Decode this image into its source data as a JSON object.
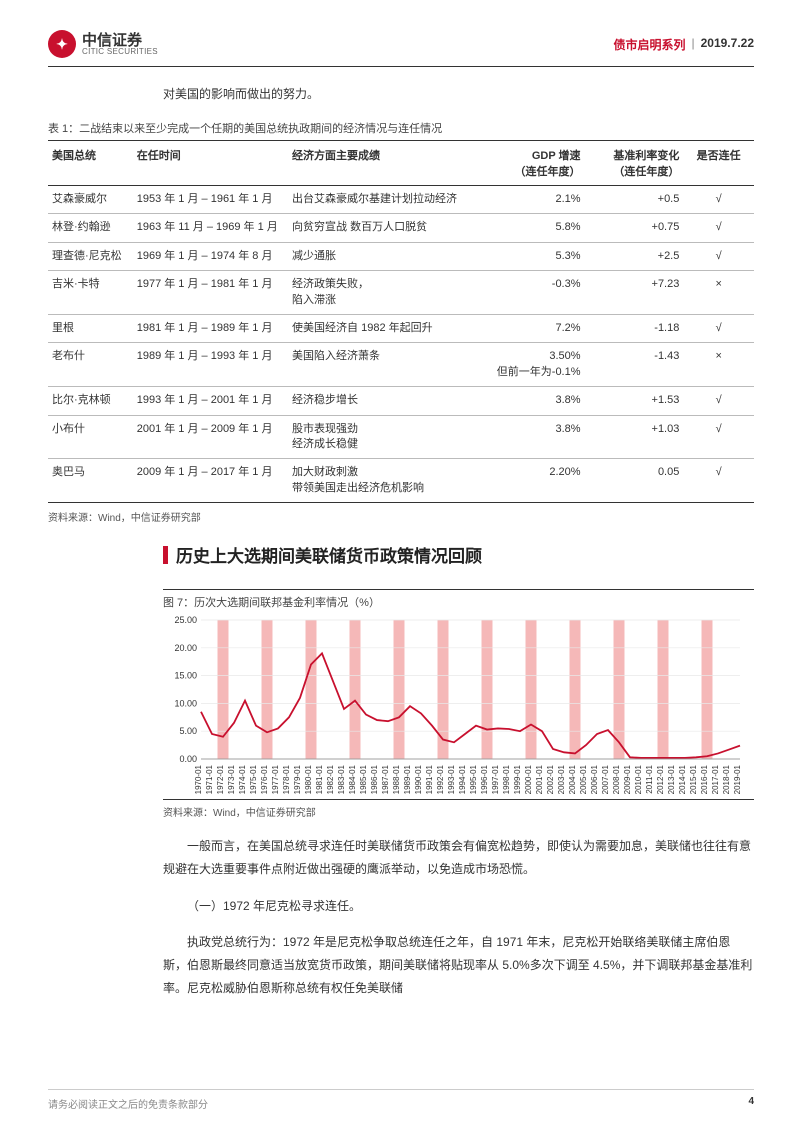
{
  "header": {
    "logo_cn": "中信证券",
    "logo_en": "CITIC SECURITIES",
    "series_label": "债市启明系列",
    "date": "2019.7.22"
  },
  "intro": "对美国的影响而做出的努力。",
  "table1": {
    "caption": "表 1：二战结束以来至少完成一个任期的美国总统执政期间的经济情况与连任情况",
    "columns": [
      "美国总统",
      "在任时间",
      "经济方面主要成绩",
      "GDP 增速\n（连任年度）",
      "基准利率变化\n（连任年度）",
      "是否连任"
    ],
    "rows": [
      [
        "艾森豪威尔",
        "1953 年 1 月 – 1961 年 1 月",
        "出台艾森豪威尔基建计划拉动经济",
        "2.1%",
        "+0.5",
        "√"
      ],
      [
        "林登·约翰逊",
        "1963 年 11 月 – 1969 年 1 月",
        "向贫穷宣战  数百万人口脱贫",
        "5.8%",
        "+0.75",
        "√"
      ],
      [
        "理查德·尼克松",
        "1969 年 1 月 – 1974 年 8 月",
        "减少通胀",
        "5.3%",
        "+2.5",
        "√"
      ],
      [
        "吉米·卡特",
        "1977 年 1 月 – 1981 年 1 月",
        "经济政策失败，\n陷入滞涨",
        "-0.3%",
        "+7.23",
        "×"
      ],
      [
        "里根",
        "1981 年 1 月 – 1989 年 1 月",
        "使美国经济自 1982 年起回升",
        "7.2%",
        "-1.18",
        "√"
      ],
      [
        "老布什",
        "1989 年 1 月 – 1993 年 1 月",
        "美国陷入经济萧条",
        "3.50%\n但前一年为-0.1%",
        "-1.43",
        "×"
      ],
      [
        "比尔·克林顿",
        "1993 年 1 月 – 2001 年 1 月",
        "经济稳步增长",
        "3.8%",
        "+1.53",
        "√"
      ],
      [
        "小布什",
        "2001 年 1 月 – 2009 年 1 月",
        "股市表现强劲\n经济成长稳健",
        "3.8%",
        "+1.03",
        "√"
      ],
      [
        "奥巴马",
        "2009 年 1 月 – 2017 年 1 月",
        "加大财政刺激\n带领美国走出经济危机影响",
        "2.20%",
        "0.05",
        "√"
      ]
    ],
    "source": "资料来源：Wind，中信证券研究部"
  },
  "section_title": "历史上大选期间美联储货币政策情况回顾",
  "chart7": {
    "caption": "图 7：历次大选期间联邦基金利率情况（%）",
    "type": "line",
    "y_ticks": [
      0.0,
      5.0,
      10.0,
      15.0,
      20.0,
      25.0
    ],
    "ylim": [
      0,
      25
    ],
    "x_labels": [
      "1970-01",
      "1971-01",
      "1972-01",
      "1973-01",
      "1974-01",
      "1975-01",
      "1976-01",
      "1977-01",
      "1978-01",
      "1979-01",
      "1980-01",
      "1981-01",
      "1982-01",
      "1983-01",
      "1984-01",
      "1985-01",
      "1986-01",
      "1987-01",
      "1988-01",
      "1989-01",
      "1990-01",
      "1991-01",
      "1992-01",
      "1993-01",
      "1994-01",
      "1995-01",
      "1996-01",
      "1997-01",
      "1998-01",
      "1999-01",
      "2000-01",
      "2001-01",
      "2002-01",
      "2003-01",
      "2004-01",
      "2005-01",
      "2006-01",
      "2007-01",
      "2008-01",
      "2009-01",
      "2010-01",
      "2011-01",
      "2012-01",
      "2013-01",
      "2014-01",
      "2015-01",
      "2016-01",
      "2017-01",
      "2018-01",
      "2019-01"
    ],
    "series_values": [
      8.5,
      4.5,
      4.0,
      6.5,
      10.5,
      6.0,
      4.8,
      5.5,
      7.5,
      11.0,
      17.0,
      19.0,
      14.0,
      9.0,
      10.5,
      8.0,
      7.0,
      6.8,
      7.5,
      9.5,
      8.2,
      6.0,
      3.5,
      3.0,
      4.5,
      6.0,
      5.3,
      5.5,
      5.4,
      5.0,
      6.2,
      5.0,
      1.8,
      1.2,
      1.0,
      2.5,
      4.5,
      5.2,
      3.0,
      0.3,
      0.2,
      0.2,
      0.2,
      0.2,
      0.2,
      0.3,
      0.5,
      1.0,
      1.7,
      2.4
    ],
    "election_band_years": [
      1972,
      1976,
      1980,
      1984,
      1988,
      1992,
      1996,
      2000,
      2004,
      2008,
      2012,
      2016
    ],
    "line_color": "#c8102e",
    "band_color": "#f5b8b8",
    "grid_color": "#e8e8e8",
    "background": "#ffffff",
    "line_width": 1.8,
    "x_fontsize": 8,
    "y_fontsize": 9,
    "source": "资料来源：Wind，中信证券研究部"
  },
  "para1": "一般而言，在美国总统寻求连任时美联储货币政策会有偏宽松趋势，即使认为需要加息，美联储也往往有意规避在大选重要事件点附近做出强硬的鹰派举动，以免造成市场恐慌。",
  "subhead1": "（一）1972 年尼克松寻求连任。",
  "para2": "执政党总统行为：1972 年是尼克松争取总统连任之年，自 1971 年末，尼克松开始联络美联储主席伯恩斯，伯恩斯最终同意适当放宽货币政策，期间美联储将贴现率从 5.0%多次下调至 4.5%，并下调联邦基金基准利率。尼克松威胁伯恩斯称总统有权任免美联储",
  "footer": {
    "disclaimer": "请务必阅读正文之后的免责条款部分",
    "page": "4"
  }
}
